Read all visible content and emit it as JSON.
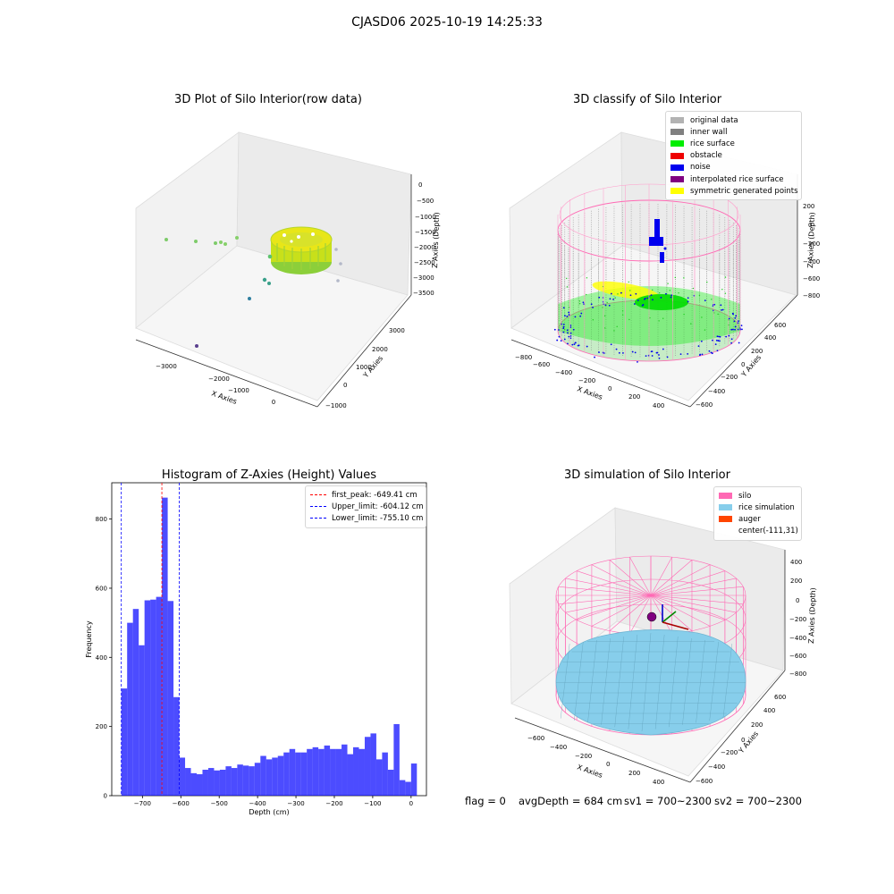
{
  "figure": {
    "title": "CJASD06 2025-10-19 14:25:33",
    "status": {
      "flag": "flag = 0",
      "avg_depth": "avgDepth = 684 cm",
      "sv1": "sv1 = 700~2300",
      "sv2": "sv2 = 700~2300"
    }
  },
  "chart_data": [
    {
      "type": "scatter",
      "subtype": "3d",
      "title": "3D Plot of Silo Interior(row data)",
      "xlabel": "X Axies",
      "ylabel": "Y Axies",
      "zlabel": "Z Axies (Depth)",
      "x_ticks": [
        "−3000",
        "−2000",
        "−1000",
        "0"
      ],
      "y_ticks": [
        "−1000",
        "0",
        "1000",
        "2000",
        "3000"
      ],
      "z_ticks": [
        "0",
        "−500",
        "−1000",
        "−1500",
        "−2000",
        "−2500",
        "−3000",
        "−3500"
      ],
      "colormap": "viridis",
      "grid": true
    },
    {
      "type": "scatter",
      "subtype": "3d",
      "title": "3D classify of Silo Interior",
      "xlabel": "X Axies",
      "ylabel": "Y Axies",
      "zlabel": "Z Axies (Depth)",
      "x_ticks": [
        "−800",
        "−600",
        "−400",
        "−200",
        "0",
        "200",
        "400"
      ],
      "y_ticks": [
        "−600",
        "−400",
        "−200",
        "0",
        "200",
        "400",
        "600"
      ],
      "z_ticks": [
        "200",
        "0",
        "−200",
        "−400",
        "−600",
        "−800"
      ],
      "legend": [
        {
          "label": "original data",
          "color": "#b3b3b3"
        },
        {
          "label": "inner wall",
          "color": "#808080"
        },
        {
          "label": "rice surface",
          "color": "#00ee00"
        },
        {
          "label": "obstacle",
          "color": "#ee0000"
        },
        {
          "label": "noise",
          "color": "#0000ee"
        },
        {
          "label": "interpolated rice surface",
          "color": "#800080"
        },
        {
          "label": "symmetric generated points",
          "color": "#ffff00"
        }
      ],
      "legend_position": "top-right",
      "grid": true
    },
    {
      "type": "bar",
      "subtype": "histogram",
      "title": "Histogram of Z-Axies (Height) Values",
      "xlabel": "Depth (cm)",
      "ylabel": "Frequency",
      "xlim": [
        -780,
        40
      ],
      "ylim": [
        0,
        905
      ],
      "x_ticks": [
        -700,
        -600,
        -500,
        -400,
        -300,
        -200,
        -100,
        0
      ],
      "y_ticks": [
        0,
        200,
        400,
        600,
        800
      ],
      "bin_start": -755,
      "bin_width": 15.1,
      "values": [
        310,
        500,
        540,
        435,
        565,
        567,
        575,
        862,
        563,
        285,
        110,
        80,
        65,
        62,
        75,
        80,
        73,
        75,
        85,
        80,
        90,
        87,
        85,
        95,
        115,
        105,
        110,
        115,
        125,
        135,
        125,
        125,
        135,
        140,
        135,
        145,
        135,
        135,
        148,
        120,
        140,
        135,
        170,
        180,
        105,
        125,
        75,
        207,
        45,
        40,
        93
      ],
      "bar_color": "#0000ff",
      "lines": [
        {
          "label": "first_peak: -649.41 cm",
          "value": -649.41,
          "color": "#ff0000"
        },
        {
          "label": "Upper_limit: -604.12 cm",
          "value": -604.12,
          "color": "#0000ff"
        },
        {
          "label": "Lower_limit: -755.10 cm",
          "value": -755.1,
          "color": "#0000ff"
        }
      ],
      "legend_position": "top-right",
      "grid": false
    },
    {
      "type": "scatter",
      "subtype": "3d",
      "title": "3D simulation of Silo Interior",
      "xlabel": "X Axies",
      "ylabel": "Y Axies",
      "zlabel": "Z Axies (Depth)",
      "x_ticks": [
        "−600",
        "−400",
        "−200",
        "0",
        "200",
        "400"
      ],
      "y_ticks": [
        "−600",
        "−400",
        "−200",
        "0",
        "200",
        "400",
        "600"
      ],
      "z_ticks": [
        "400",
        "200",
        "0",
        "−200",
        "−400",
        "−600",
        "−800"
      ],
      "legend": [
        {
          "label": "silo",
          "color": "#ff69b4"
        },
        {
          "label": "rice simulation",
          "color": "#87ceeb"
        },
        {
          "label": "auger",
          "color": "#ff4500"
        },
        {
          "label": "center(-111,31)",
          "color": ""
        }
      ],
      "legend_position": "top-right",
      "grid": true
    }
  ]
}
